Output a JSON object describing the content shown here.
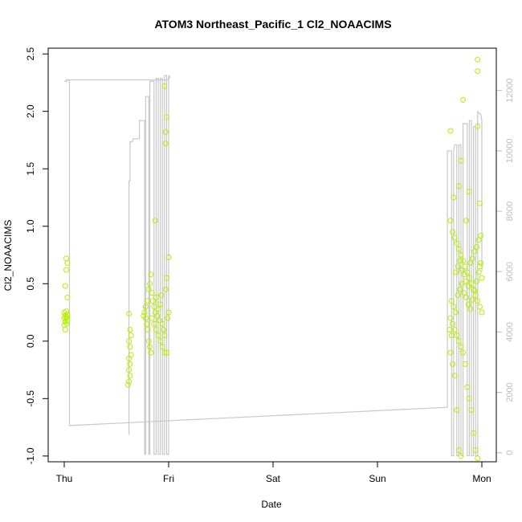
{
  "chart_data": {
    "type": "scatter",
    "title": "ATOM3 Northeast_Pacific_1 Cl2_NOAACIMS",
    "xlabel": "Date",
    "ylabel": "Cl2_NOAACIMS",
    "x_ticks": [
      "Thu",
      "Fri",
      "Sat",
      "Sun",
      "Mon"
    ],
    "xlim": [
      0,
      4.1
    ],
    "ylim": [
      -1.05,
      2.55
    ],
    "y_ticks": [
      "-1.0",
      "-0.5",
      "0.0",
      "0.5",
      "1.0",
      "1.5",
      "2.0",
      "2.5"
    ],
    "y_right_ticks": [
      "0",
      "2000",
      "4000",
      "6000",
      "8000",
      "10000",
      "12000"
    ],
    "y_right_lim": [
      -300,
      13400
    ],
    "grid": false,
    "colors": {
      "points": "#b4ee00",
      "line": "#c8c8c8",
      "frame": "#000000",
      "right_axis": "#bdbdbd"
    },
    "series": [
      {
        "kind": "points",
        "axis": "left",
        "clusters": [
          {
            "center": 0.02,
            "spread": 0.04,
            "points": [
              [
                0.02,
                0.72
              ],
              [
                0.03,
                0.68
              ],
              [
                0.02,
                0.62
              ],
              [
                0.01,
                0.48
              ],
              [
                0.03,
                0.38
              ],
              [
                0.0,
                0.25
              ],
              [
                0.01,
                0.22
              ],
              [
                0.02,
                0.2
              ],
              [
                0.03,
                0.18
              ],
              [
                0.0,
                0.14
              ],
              [
                0.01,
                0.1
              ],
              [
                0.02,
                0.26
              ],
              [
                0.03,
                0.21
              ],
              [
                0.01,
                0.17
              ],
              [
                0.02,
                0.15
              ],
              [
                0.0,
                0.2
              ],
              [
                0.03,
                0.23
              ]
            ]
          },
          {
            "center": 0.99,
            "spread": 0.6,
            "points": [
              [
                0.87,
                1.05
              ],
              [
                1.0,
                0.73
              ],
              [
                0.96,
                2.22
              ],
              [
                0.97,
                1.82
              ],
              [
                0.97,
                1.72
              ],
              [
                0.98,
                1.95
              ],
              [
                0.81,
                0.45
              ],
              [
                0.82,
                0.5
              ],
              [
                0.83,
                0.58
              ],
              [
                0.84,
                0.42
              ],
              [
                0.78,
                0.2
              ],
              [
                0.79,
                0.15
              ],
              [
                0.8,
                0.1
              ],
              [
                0.81,
                0.0
              ],
              [
                0.82,
                -0.05
              ],
              [
                0.83,
                -0.1
              ],
              [
                0.85,
                0.35
              ],
              [
                0.86,
                0.3
              ],
              [
                0.87,
                0.25
              ],
              [
                0.88,
                0.38
              ],
              [
                0.89,
                0.22
              ],
              [
                0.9,
                0.28
              ],
              [
                0.91,
                0.18
              ],
              [
                0.92,
                0.32
              ],
              [
                0.93,
                0.4
              ],
              [
                0.94,
                0.15
              ],
              [
                0.95,
                0.1
              ],
              [
                0.96,
                0.05
              ],
              [
                0.97,
                0.45
              ],
              [
                0.98,
                0.55
              ],
              [
                0.99,
                0.2
              ],
              [
                1.0,
                0.25
              ],
              [
                0.76,
                0.22
              ],
              [
                0.77,
                0.25
              ],
              [
                0.78,
                0.3
              ],
              [
                0.8,
                0.35
              ],
              [
                0.84,
                0.2
              ],
              [
                0.86,
                0.15
              ],
              [
                0.88,
                0.1
              ],
              [
                0.9,
                0.05
              ],
              [
                0.92,
                0.0
              ],
              [
                0.94,
                -0.05
              ],
              [
                0.96,
                -0.1
              ],
              [
                0.98,
                -0.1
              ],
              [
                0.62,
                -0.35
              ],
              [
                0.63,
                -0.3
              ],
              [
                0.62,
                -0.25
              ],
              [
                0.63,
                -0.2
              ],
              [
                0.62,
                -0.15
              ],
              [
                0.63,
                -0.05
              ],
              [
                0.62,
                0.0
              ],
              [
                0.63,
                0.1
              ],
              [
                0.62,
                0.24
              ],
              [
                0.61,
                -0.38
              ],
              [
                0.64,
                -0.12
              ],
              [
                0.64,
                0.05
              ]
            ]
          },
          {
            "center": 3.8,
            "spread": 0.6,
            "points": [
              [
                3.96,
                2.45
              ],
              [
                3.96,
                2.35
              ],
              [
                3.82,
                2.1
              ],
              [
                3.96,
                1.87
              ],
              [
                3.7,
                1.83
              ],
              [
                3.8,
                1.57
              ],
              [
                3.85,
                1.05
              ],
              [
                3.7,
                1.05
              ],
              [
                3.72,
                0.95
              ],
              [
                3.74,
                0.9
              ],
              [
                3.76,
                0.85
              ],
              [
                3.78,
                0.8
              ],
              [
                3.8,
                0.75
              ],
              [
                3.82,
                0.7
              ],
              [
                3.84,
                0.65
              ],
              [
                3.86,
                0.6
              ],
              [
                3.88,
                0.55
              ],
              [
                3.9,
                0.5
              ],
              [
                3.92,
                0.45
              ],
              [
                3.94,
                0.4
              ],
              [
                3.96,
                0.35
              ],
              [
                3.98,
                0.3
              ],
              [
                4.0,
                0.25
              ],
              [
                3.7,
                0.2
              ],
              [
                3.72,
                0.15
              ],
              [
                3.74,
                0.1
              ],
              [
                3.76,
                0.05
              ],
              [
                3.78,
                0.0
              ],
              [
                3.8,
                -0.05
              ],
              [
                3.82,
                -0.1
              ],
              [
                3.84,
                -0.2
              ],
              [
                3.86,
                -0.4
              ],
              [
                3.88,
                -0.5
              ],
              [
                3.9,
                -0.6
              ],
              [
                3.92,
                -0.8
              ],
              [
                3.94,
                -0.95
              ],
              [
                3.96,
                -1.02
              ],
              [
                3.98,
                0.65
              ],
              [
                4.0,
                0.55
              ],
              [
                3.75,
                0.6
              ],
              [
                3.77,
                0.65
              ],
              [
                3.79,
                0.7
              ],
              [
                3.81,
                0.62
              ],
              [
                3.83,
                0.58
              ],
              [
                3.85,
                0.52
              ],
              [
                3.87,
                0.48
              ],
              [
                3.89,
                0.68
              ],
              [
                3.91,
                0.72
              ],
              [
                3.93,
                0.78
              ],
              [
                3.95,
                0.82
              ],
              [
                3.97,
                0.88
              ],
              [
                3.99,
                0.92
              ],
              [
                3.73,
                1.25
              ],
              [
                3.78,
                1.35
              ],
              [
                3.88,
                1.3
              ],
              [
                3.98,
                1.2
              ],
              [
                3.71,
                0.35
              ],
              [
                3.73,
                0.3
              ],
              [
                3.75,
                0.25
              ],
              [
                3.77,
                0.4
              ],
              [
                3.79,
                0.45
              ],
              [
                3.81,
                0.5
              ],
              [
                3.83,
                0.42
              ],
              [
                3.85,
                0.38
              ],
              [
                3.87,
                0.32
              ],
              [
                3.89,
                0.28
              ],
              [
                3.91,
                0.36
              ],
              [
                3.93,
                0.44
              ],
              [
                3.95,
                0.52
              ],
              [
                3.97,
                0.6
              ],
              [
                3.99,
                0.68
              ],
              [
                3.69,
                0.1
              ],
              [
                3.71,
                0.05
              ],
              [
                3.7,
                -0.1
              ],
              [
                3.72,
                -0.2
              ],
              [
                3.74,
                -0.3
              ],
              [
                3.76,
                -0.6
              ],
              [
                3.78,
                -0.95
              ],
              [
                3.8,
                -1.0
              ]
            ]
          }
        ]
      },
      {
        "kind": "line",
        "axis": "right",
        "points": [
          [
            0.0,
            12300
          ],
          [
            0.02,
            12300
          ],
          [
            0.02,
            12350
          ],
          [
            0.04,
            12350
          ],
          [
            0.05,
            12300
          ],
          [
            0.05,
            900
          ],
          [
            3.65,
            1500
          ],
          [
            3.67,
            1500
          ],
          [
            3.67,
            10000
          ],
          [
            3.71,
            10000
          ],
          [
            3.71,
            -100
          ],
          [
            3.73,
            -100
          ],
          [
            3.73,
            10000
          ],
          [
            3.74,
            10200
          ],
          [
            3.76,
            10200
          ],
          [
            3.76,
            -100
          ],
          [
            3.78,
            -100
          ],
          [
            3.78,
            10200
          ],
          [
            3.8,
            10200
          ],
          [
            3.8,
            -100
          ],
          [
            3.82,
            -100
          ],
          [
            3.82,
            10900
          ],
          [
            3.86,
            10900
          ],
          [
            3.86,
            -100
          ],
          [
            3.88,
            -100
          ],
          [
            3.88,
            11000
          ],
          [
            3.9,
            11000
          ],
          [
            3.9,
            -100
          ],
          [
            3.92,
            -100
          ],
          [
            3.92,
            10800
          ],
          [
            3.94,
            10800
          ],
          [
            3.94,
            -100
          ],
          [
            3.96,
            -100
          ],
          [
            3.96,
            11300
          ],
          [
            3.99,
            11200
          ],
          [
            4.0,
            11000
          ],
          [
            4.0,
            6000
          ]
        ]
      },
      {
        "kind": "line",
        "axis": "right",
        "points": [
          [
            0.0,
            12300
          ],
          [
            0.02,
            12300
          ],
          [
            0.02,
            12350
          ],
          [
            1.0,
            12350
          ],
          [
            1.01,
            12500
          ],
          [
            1.01,
            12400
          ]
        ]
      },
      {
        "kind": "line",
        "axis": "right",
        "points": [
          [
            0.62,
            600
          ],
          [
            0.62,
            9000
          ],
          [
            0.63,
            9000
          ],
          [
            0.63,
            10300
          ],
          [
            0.65,
            10300
          ],
          [
            0.66,
            10400
          ],
          [
            0.72,
            10400
          ],
          [
            0.72,
            11000
          ],
          [
            0.77,
            11000
          ],
          [
            0.77,
            -50
          ],
          [
            0.78,
            -50
          ],
          [
            0.78,
            11800
          ],
          [
            0.81,
            11800
          ],
          [
            0.81,
            -50
          ],
          [
            0.82,
            -50
          ],
          [
            0.82,
            12300
          ],
          [
            0.86,
            12300
          ],
          [
            0.86,
            -50
          ],
          [
            0.88,
            -50
          ],
          [
            0.88,
            12400
          ],
          [
            0.9,
            12400
          ],
          [
            0.9,
            -50
          ],
          [
            0.92,
            -50
          ],
          [
            0.92,
            12400
          ],
          [
            0.94,
            12400
          ],
          [
            0.94,
            -50
          ],
          [
            0.96,
            -50
          ],
          [
            0.96,
            12500
          ],
          [
            0.98,
            12500
          ],
          [
            0.98,
            -50
          ],
          [
            1.0,
            -50
          ],
          [
            1.0,
            12500
          ]
        ]
      }
    ]
  }
}
